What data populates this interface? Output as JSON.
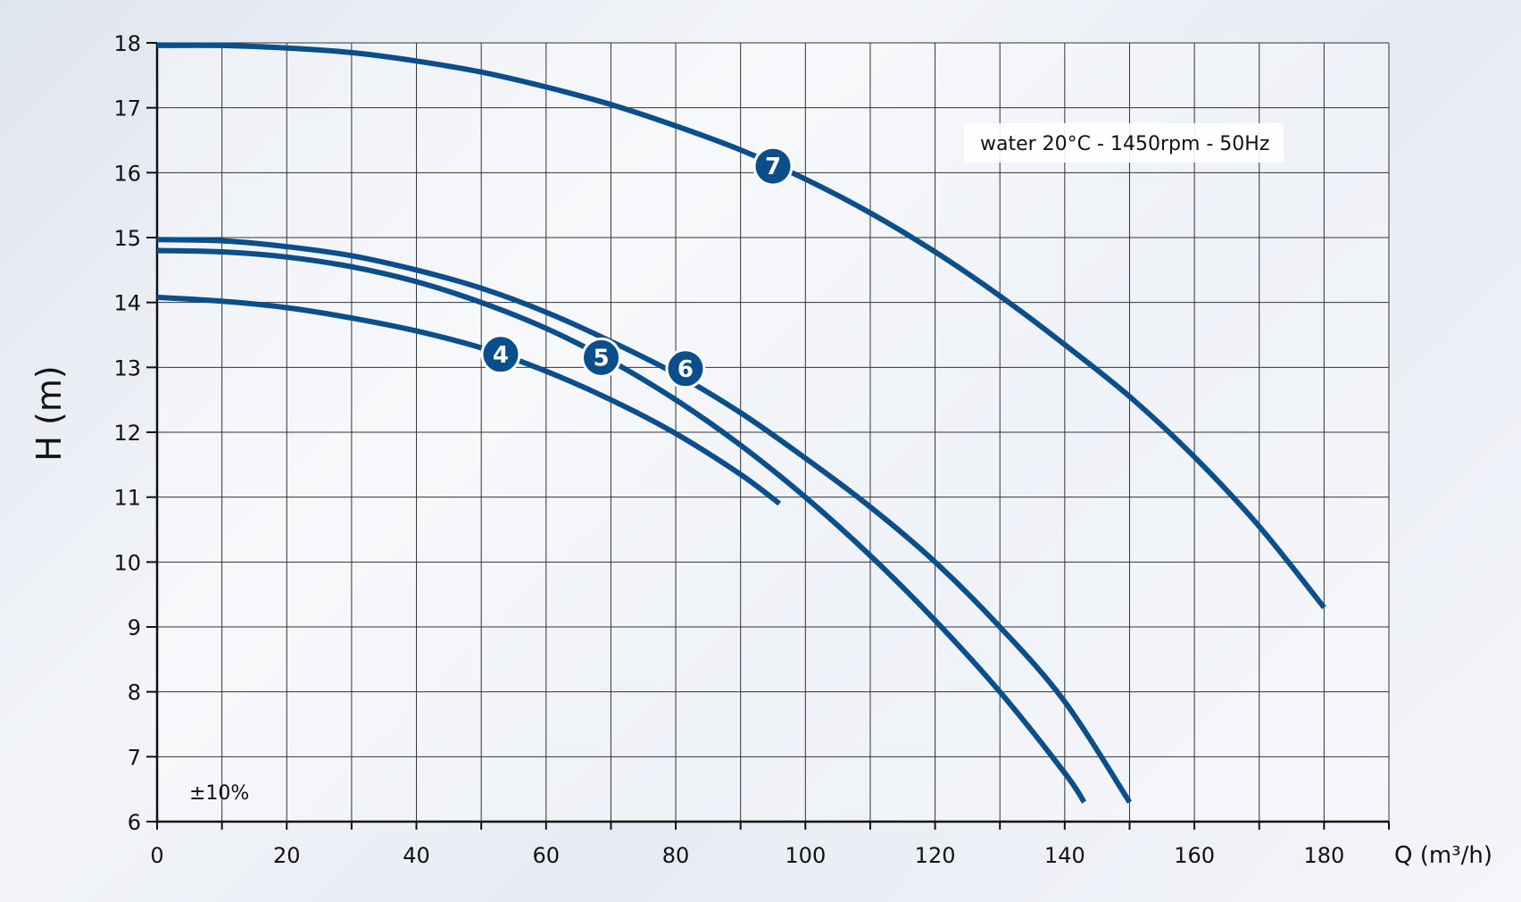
{
  "chart_data": {
    "type": "line",
    "title": "",
    "xlabel": "Q (m³/h)",
    "ylabel": "H (m)",
    "xlim": [
      0,
      190
    ],
    "ylim": [
      6,
      18
    ],
    "xticks": [
      0,
      20,
      40,
      60,
      80,
      100,
      120,
      140,
      160,
      180
    ],
    "yticks": [
      6,
      7,
      8,
      9,
      10,
      11,
      12,
      13,
      14,
      15,
      16,
      17,
      18
    ],
    "grid": true,
    "annotation": "water 20°C - 1450rpm - 50Hz",
    "tolerance": "±10%",
    "line_color": "#0a4f8c",
    "series": [
      {
        "name": "4",
        "label_at": [
          53,
          13.2
        ],
        "points": [
          [
            0,
            14.08
          ],
          [
            10,
            14.02
          ],
          [
            20,
            13.92
          ],
          [
            30,
            13.76
          ],
          [
            40,
            13.56
          ],
          [
            50,
            13.3
          ],
          [
            60,
            12.94
          ],
          [
            70,
            12.5
          ],
          [
            80,
            11.98
          ],
          [
            90,
            11.35
          ],
          [
            96,
            10.9
          ]
        ]
      },
      {
        "name": "5",
        "label_at": [
          68.5,
          13.15
        ],
        "points": [
          [
            0,
            14.8
          ],
          [
            10,
            14.78
          ],
          [
            20,
            14.7
          ],
          [
            30,
            14.55
          ],
          [
            40,
            14.32
          ],
          [
            50,
            14.0
          ],
          [
            60,
            13.6
          ],
          [
            70,
            13.1
          ],
          [
            80,
            12.5
          ],
          [
            90,
            11.8
          ],
          [
            100,
            11.0
          ],
          [
            110,
            10.1
          ],
          [
            120,
            9.1
          ],
          [
            130,
            8.0
          ],
          [
            140,
            6.75
          ],
          [
            143,
            6.3
          ]
        ]
      },
      {
        "name": "6",
        "label_at": [
          81.5,
          12.98
        ],
        "points": [
          [
            0,
            14.97
          ],
          [
            10,
            14.95
          ],
          [
            20,
            14.86
          ],
          [
            30,
            14.72
          ],
          [
            40,
            14.5
          ],
          [
            50,
            14.22
          ],
          [
            60,
            13.85
          ],
          [
            70,
            13.4
          ],
          [
            80,
            12.9
          ],
          [
            90,
            12.3
          ],
          [
            100,
            11.6
          ],
          [
            110,
            10.85
          ],
          [
            120,
            10.0
          ],
          [
            130,
            9.0
          ],
          [
            140,
            7.85
          ],
          [
            150,
            6.3
          ]
        ]
      },
      {
        "name": "7",
        "label_at": [
          95,
          16.1
        ],
        "points": [
          [
            0,
            17.96
          ],
          [
            10,
            17.96
          ],
          [
            20,
            17.92
          ],
          [
            30,
            17.85
          ],
          [
            40,
            17.72
          ],
          [
            50,
            17.55
          ],
          [
            60,
            17.32
          ],
          [
            70,
            17.05
          ],
          [
            80,
            16.72
          ],
          [
            90,
            16.35
          ],
          [
            100,
            15.9
          ],
          [
            110,
            15.38
          ],
          [
            120,
            14.78
          ],
          [
            130,
            14.1
          ],
          [
            140,
            13.35
          ],
          [
            150,
            12.55
          ],
          [
            160,
            11.62
          ],
          [
            170,
            10.55
          ],
          [
            180,
            9.3
          ]
        ]
      }
    ]
  }
}
